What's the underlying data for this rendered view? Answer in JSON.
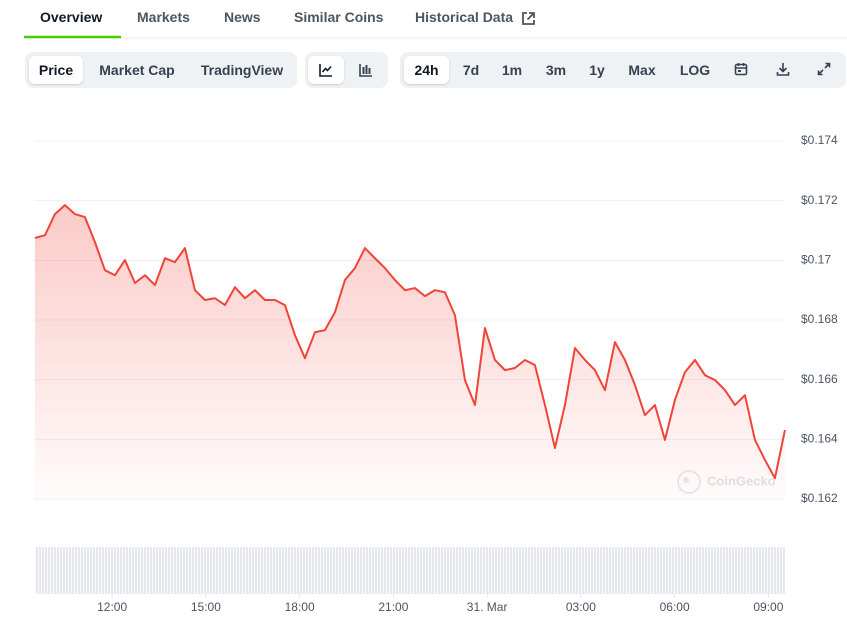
{
  "tabs": [
    "Overview",
    "Markets",
    "News",
    "Similar Coins",
    "Historical Data"
  ],
  "chart_views": [
    "Price",
    "Market Cap",
    "TradingView"
  ],
  "ranges": [
    "24h",
    "7d",
    "1m",
    "3m",
    "1y",
    "Max",
    "LOG"
  ],
  "watermark": "CoinGecko",
  "chart_data": {
    "type": "line",
    "color": "#f04438",
    "grid": true,
    "x": [
      9.53,
      9.85,
      10.17,
      10.49,
      10.81,
      11.13,
      11.45,
      11.77,
      12.09,
      12.41,
      12.73,
      13.05,
      13.37,
      13.69,
      14.01,
      14.33,
      14.65,
      14.97,
      15.29,
      15.61,
      15.93,
      16.25,
      16.57,
      16.89,
      17.21,
      17.53,
      17.85,
      18.17,
      18.49,
      18.81,
      19.13,
      19.45,
      19.77,
      20.09,
      20.41,
      20.73,
      21.05,
      21.37,
      21.69,
      22.01,
      22.33,
      22.65,
      22.97,
      23.29,
      23.61,
      23.93,
      24.25,
      24.57,
      24.89,
      25.21,
      25.53,
      25.85,
      26.17,
      26.49,
      26.81,
      27.13,
      27.45,
      27.77,
      28.09,
      28.41,
      28.73,
      29.05,
      29.37,
      29.69,
      30.01,
      30.33,
      30.65,
      30.97,
      31.29,
      31.61,
      31.93,
      32.25,
      32.57,
      32.89,
      33.21,
      33.53
    ],
    "values": [
      0.17075,
      0.17084,
      0.17155,
      0.17185,
      0.17155,
      0.17145,
      0.17061,
      0.16967,
      0.1695,
      0.17001,
      0.16924,
      0.1695,
      0.16917,
      0.17007,
      0.16994,
      0.17041,
      0.169,
      0.16867,
      0.16873,
      0.1685,
      0.1691,
      0.16873,
      0.169,
      0.16867,
      0.16867,
      0.1685,
      0.16749,
      0.16672,
      0.16759,
      0.16766,
      0.16826,
      0.16934,
      0.16974,
      0.17041,
      0.17007,
      0.16974,
      0.16934,
      0.169,
      0.16907,
      0.1688,
      0.169,
      0.16893,
      0.16816,
      0.16599,
      0.16515,
      0.16773,
      0.16666,
      0.16632,
      0.16639,
      0.16666,
      0.16649,
      0.16515,
      0.16371,
      0.16515,
      0.16706,
      0.16666,
      0.16632,
      0.16565,
      0.16726,
      0.16666,
      0.16582,
      0.16481,
      0.16515,
      0.16398,
      0.16532,
      0.16625,
      0.16666,
      0.16615,
      0.16599,
      0.16565,
      0.16515,
      0.16548,
      0.16398,
      0.16331,
      0.1627,
      0.16431
    ],
    "xlim": [
      9.5,
      33.5
    ],
    "xticks": [
      {
        "value": 12,
        "label": "12:00"
      },
      {
        "value": 15,
        "label": "15:00"
      },
      {
        "value": 18,
        "label": "18:00"
      },
      {
        "value": 21,
        "label": "21:00"
      },
      {
        "value": 24,
        "label": "31. Mar"
      },
      {
        "value": 27,
        "label": "03:00"
      },
      {
        "value": 30,
        "label": "06:00"
      },
      {
        "value": 33,
        "label": "09:00"
      }
    ],
    "ylim": [
      0.162,
      0.174
    ],
    "yticks": [
      {
        "value": 0.162,
        "label": "$0.162"
      },
      {
        "value": 0.164,
        "label": "$0.164"
      },
      {
        "value": 0.166,
        "label": "$0.166"
      },
      {
        "value": 0.168,
        "label": "$0.168"
      },
      {
        "value": 0.17,
        "label": "$0.17"
      },
      {
        "value": 0.172,
        "label": "$0.172"
      },
      {
        "value": 0.174,
        "label": "$0.174"
      }
    ]
  }
}
